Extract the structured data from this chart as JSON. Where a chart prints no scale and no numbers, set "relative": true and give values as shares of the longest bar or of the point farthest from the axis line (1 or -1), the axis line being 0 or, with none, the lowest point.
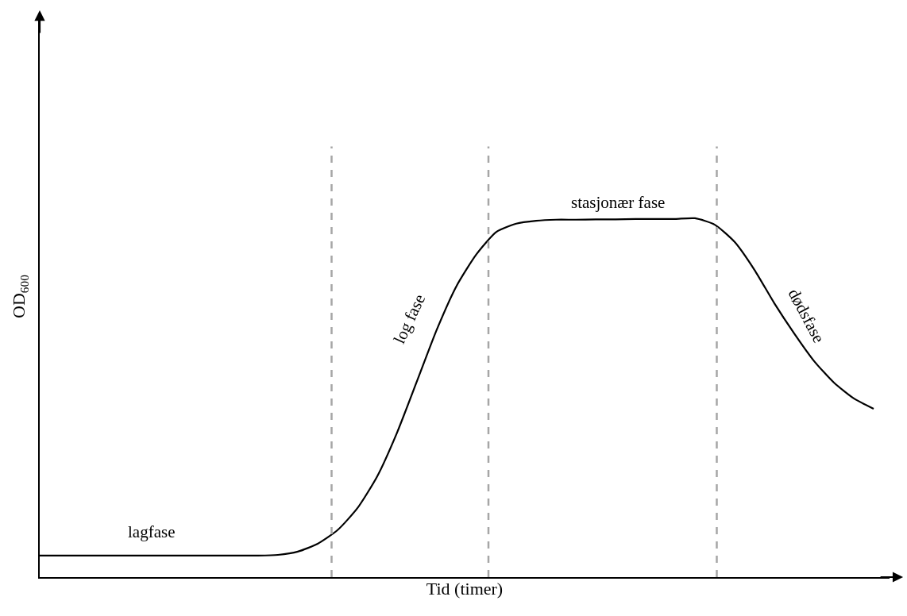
{
  "chart_data": {
    "type": "line",
    "relative": true,
    "xlabel": "Tid (timer)",
    "ylabel": "OD$_{600}$",
    "categories": [
      null,
      null,
      null,
      null,
      null,
      null,
      null,
      null,
      null,
      null,
      null,
      null,
      null,
      null,
      null,
      null,
      null,
      null,
      null,
      null,
      null,
      null,
      null,
      null,
      null,
      null,
      null,
      null,
      null,
      null,
      null,
      null,
      null,
      null,
      null,
      null,
      null,
      null,
      null,
      null,
      null,
      null,
      null
    ],
    "series": [
      {
        "color": "#000000",
        "values": [
          0.06,
          0.06,
          0.06,
          0.06,
          0.06,
          0.06,
          0.06,
          0.06,
          0.06,
          0.06,
          0.06,
          0.06,
          0.062,
          0.071,
          0.093,
          0.131,
          0.192,
          0.281,
          0.403,
          0.546,
          0.69,
          0.812,
          0.9,
          0.962,
          0.985,
          0.993,
          0.996,
          0.996,
          0.997,
          0.997,
          0.998,
          0.998,
          0.998,
          1.0,
          0.982,
          0.934,
          0.856,
          0.763,
          0.679,
          0.602,
          0.542,
          0.498,
          0.469
        ]
      }
    ],
    "annotations": [
      "lagfase",
      "log fase",
      "stasjonær fase",
      "dødsfase"
    ],
    "marker": "none",
    "line_style": "solid"
  }
}
